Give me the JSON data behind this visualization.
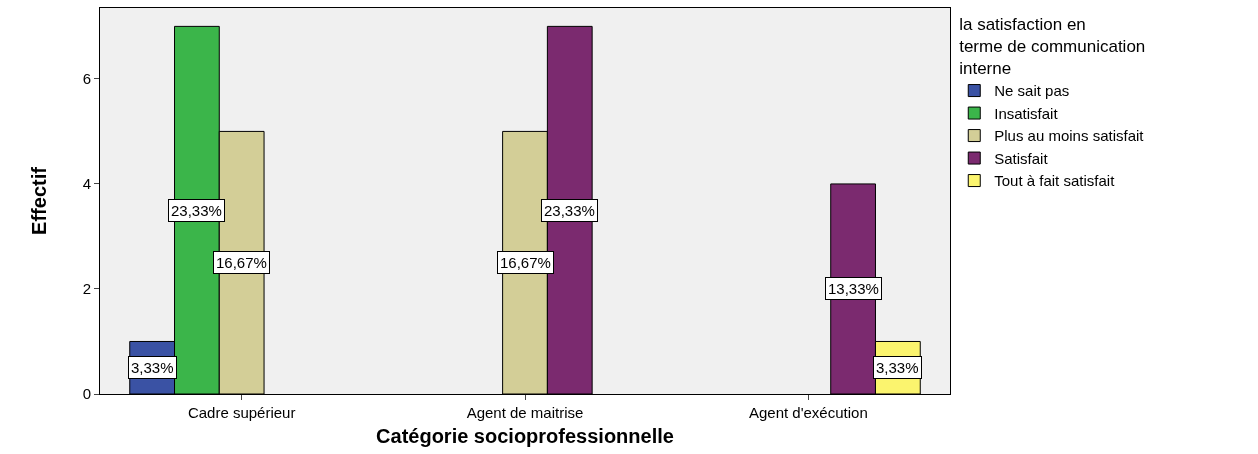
{
  "chart_data": {
    "type": "bar",
    "xlabel": "Catégorie socioprofessionnelle",
    "ylabel": "Effectif",
    "legend_title": "la satisfaction en terme de communication interne",
    "categories": [
      "Cadre supérieur",
      "Agent de maitrise",
      "Agent d'exécution"
    ],
    "series": [
      {
        "name": "Ne sait pas",
        "color": "#3a52a4",
        "values": [
          1,
          null,
          null
        ]
      },
      {
        "name": "Insatisfait",
        "color": "#3bb54a",
        "values": [
          7,
          null,
          null
        ]
      },
      {
        "name": "Plus au moins satisfait",
        "color": "#d3ce97",
        "values": [
          5,
          5,
          null
        ]
      },
      {
        "name": "Satisfait",
        "color": "#7b2a6f",
        "values": [
          null,
          7,
          4
        ]
      },
      {
        "name": "Tout à fait satisfait",
        "color": "#fbf46e",
        "values": [
          null,
          null,
          1
        ]
      }
    ],
    "annotations": [
      "3,33%",
      "23,33%",
      "16,67%",
      "16,67%",
      "23,33%",
      "13,33%",
      "3,33%"
    ],
    "ylim": [
      0,
      7.35
    ],
    "yticks": [
      0,
      2,
      4,
      6
    ],
    "grid": false,
    "legend": "top right"
  }
}
